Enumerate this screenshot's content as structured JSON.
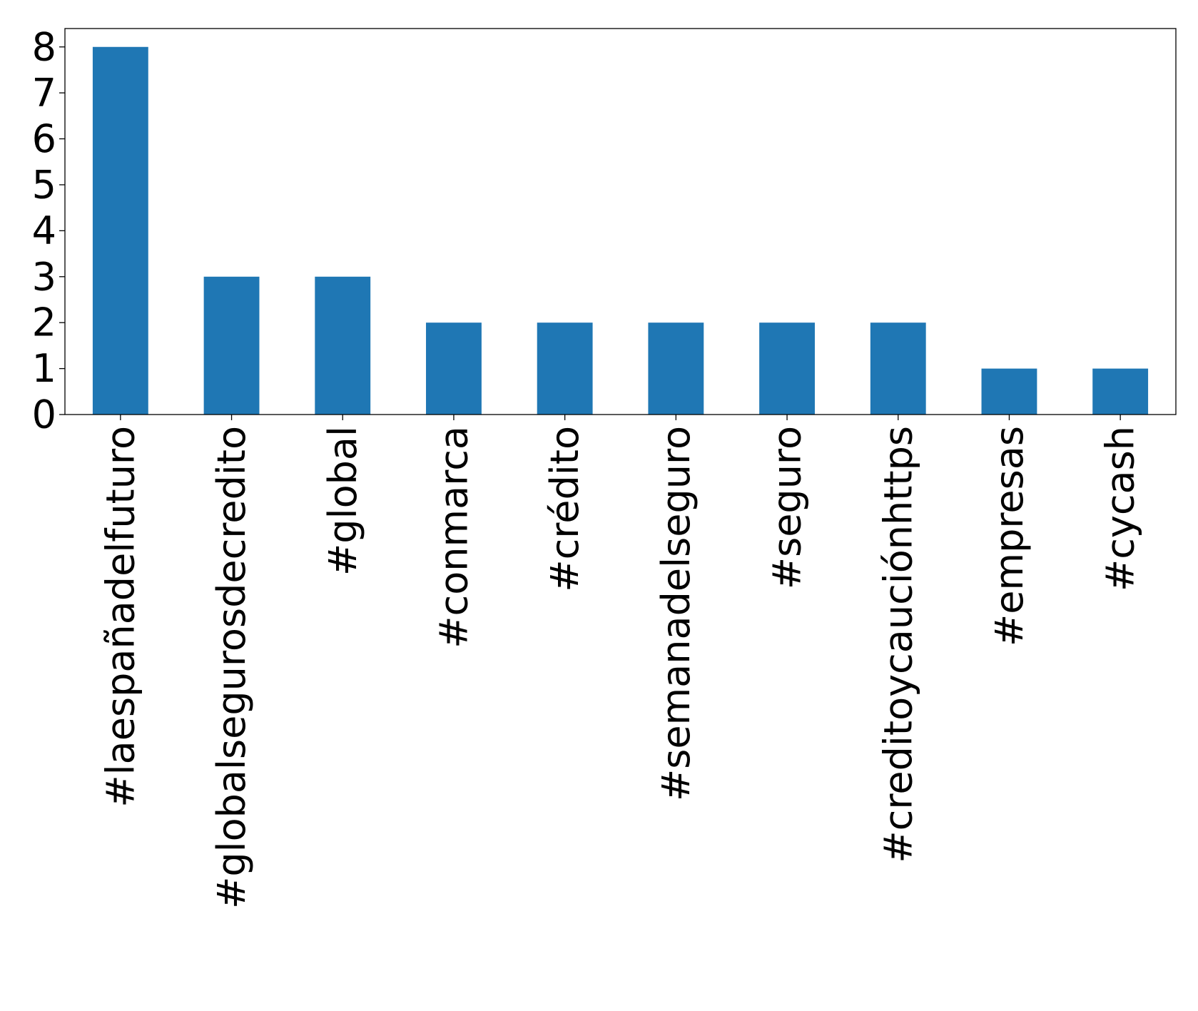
{
  "chart_data": {
    "type": "bar",
    "title": "",
    "xlabel": "",
    "ylabel": "",
    "categories": [
      "#laespañadelfuturo",
      "#globalsegurosdecredito",
      "#global",
      "#conmarca",
      "#crédito",
      "#semanadelseguro",
      "#seguro",
      "#creditoycauciónhttps",
      "#empresas",
      "#cycash"
    ],
    "values": [
      8,
      3,
      3,
      2,
      2,
      2,
      2,
      2,
      1,
      1
    ],
    "ylim": [
      0,
      8.4
    ],
    "yticks": [
      0,
      1,
      2,
      3,
      4,
      5,
      6,
      7,
      8
    ],
    "bar_color": "#1f77b4",
    "grid": false,
    "legend": "none"
  }
}
